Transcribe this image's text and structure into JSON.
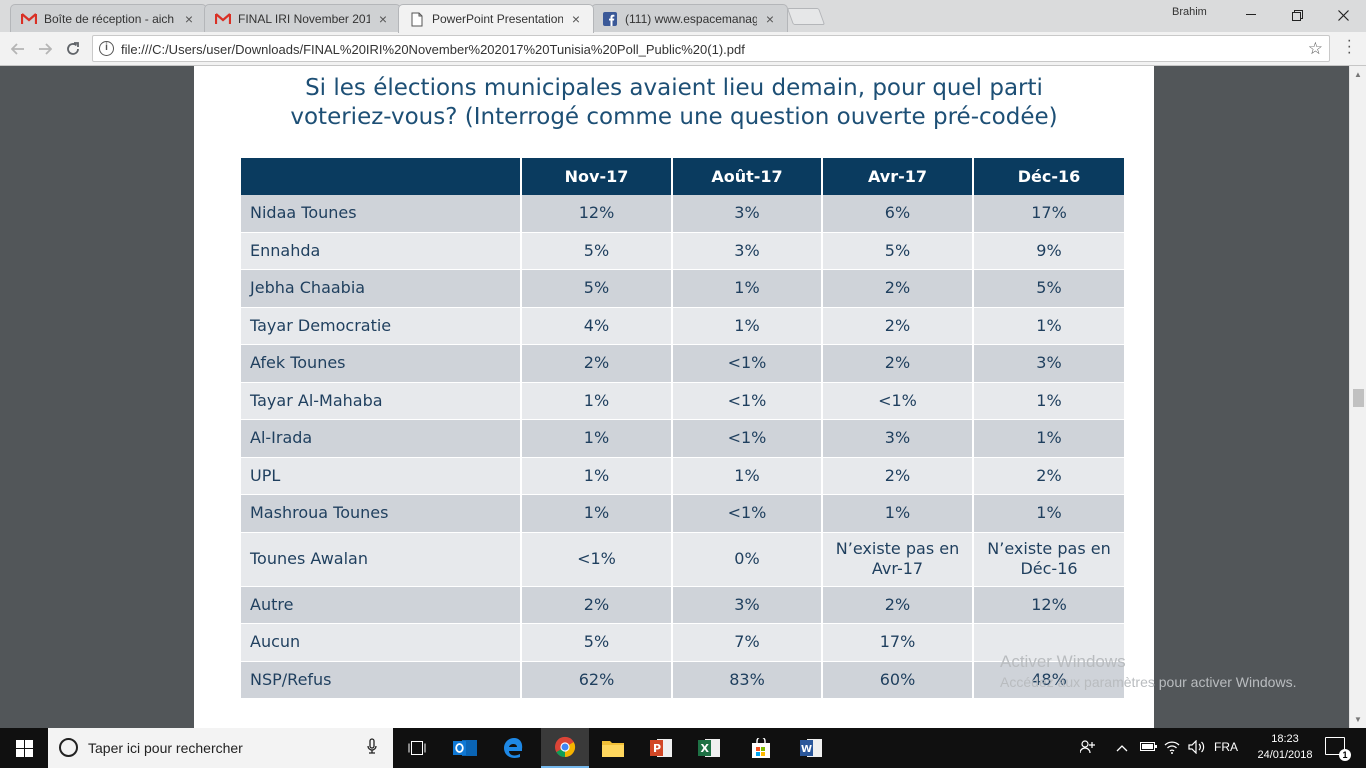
{
  "browser": {
    "tabs": [
      {
        "title": "Boîte de réception - aich",
        "icon": "gmail-icon"
      },
      {
        "title": "FINAL IRI November 201",
        "icon": "gmail-icon"
      },
      {
        "title": "PowerPoint Presentation",
        "icon": "document-icon",
        "active": true
      },
      {
        "title": "(111) www.espacemanag",
        "icon": "facebook-icon"
      }
    ],
    "profile_name": "Brahim",
    "url": "file:///C:/Users/user/Downloads/FINAL%20IRI%20November%202017%20Tunisia%20Poll_Public%20(1).pdf"
  },
  "slide": {
    "title_line1": "Si les élections municipales avaient lieu demain, pour quel parti",
    "title_line2": "voteriez-vous? (Interrogé comme une question ouverte pré-codée)",
    "columns": [
      "",
      "Nov-17",
      "Août-17",
      "Avr-17",
      "Déc-16"
    ],
    "rows": [
      {
        "party": "Nidaa Tounes",
        "values": [
          "12%",
          "3%",
          "6%",
          "17%"
        ]
      },
      {
        "party": "Ennahda",
        "values": [
          "5%",
          "3%",
          "5%",
          "9%"
        ]
      },
      {
        "party": "Jebha Chaabia",
        "values": [
          "5%",
          "1%",
          "2%",
          "5%"
        ]
      },
      {
        "party": "Tayar Democratie",
        "values": [
          "4%",
          "1%",
          "2%",
          "1%"
        ]
      },
      {
        "party": "Afek Tounes",
        "values": [
          "2%",
          "<1%",
          "2%",
          "3%"
        ]
      },
      {
        "party": "Tayar Al-Mahaba",
        "values": [
          "1%",
          "<1%",
          "<1%",
          "1%"
        ]
      },
      {
        "party": "Al-Irada",
        "values": [
          "1%",
          "<1%",
          "3%",
          "1%"
        ]
      },
      {
        "party": "UPL",
        "values": [
          "1%",
          "1%",
          "2%",
          "2%"
        ]
      },
      {
        "party": "Mashroua Tounes",
        "values": [
          "1%",
          "<1%",
          "1%",
          "1%"
        ]
      },
      {
        "party": "Tounes Awalan",
        "values": [
          "<1%",
          "0%",
          "N’existe pas en Avr-17",
          "N’existe pas en Déc-16"
        ]
      },
      {
        "party": "Autre",
        "values": [
          "2%",
          "3%",
          "2%",
          "12%"
        ]
      },
      {
        "party": "Aucun",
        "values": [
          "5%",
          "7%",
          "17%",
          ""
        ]
      },
      {
        "party": "NSP/Refus",
        "values": [
          "62%",
          "83%",
          "60%",
          "48%"
        ]
      }
    ]
  },
  "watermark": {
    "line1": "Activer Windows",
    "line2": "Accédez aux paramètres pour activer Windows."
  },
  "taskbar": {
    "search_placeholder": "Taper ici pour rechercher",
    "language": "FRA",
    "time": "18:23",
    "date": "24/01/2018",
    "notification_count": "1"
  },
  "colors": {
    "header_bg": "#0a3b5f",
    "title_color": "#1d4f75",
    "row_dark": "#cfd3d9",
    "row_light": "#e7e9ec"
  }
}
